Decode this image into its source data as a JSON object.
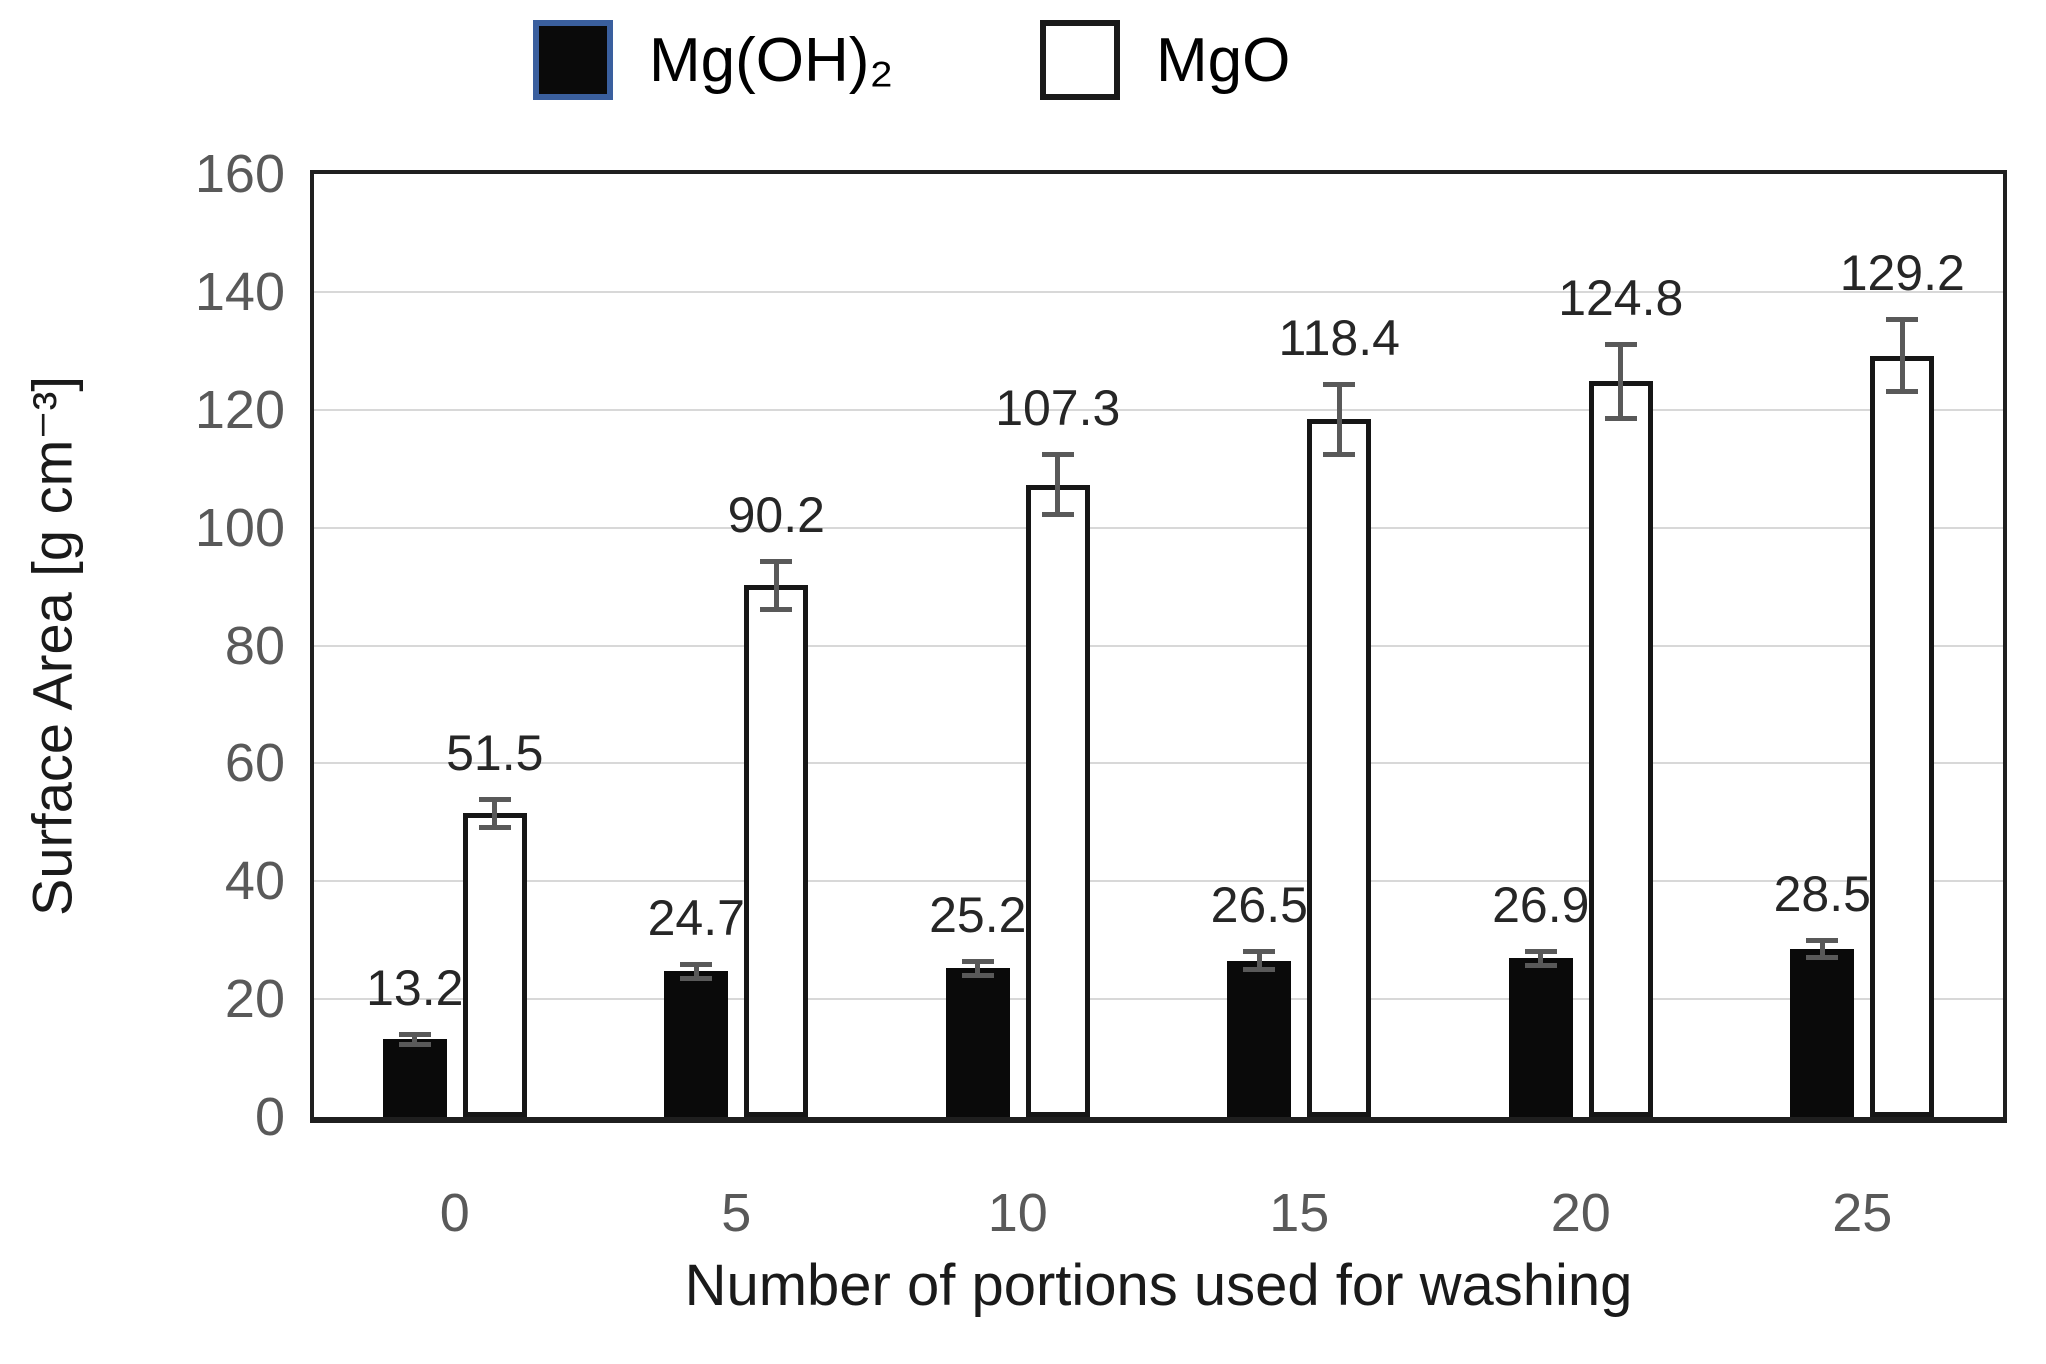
{
  "chart_data": {
    "type": "bar",
    "categories": [
      "0",
      "5",
      "10",
      "15",
      "20",
      "25"
    ],
    "series": [
      {
        "name": "Mg(OH)₂",
        "values": [
          13.2,
          24.7,
          25.2,
          26.5,
          26.9,
          28.5
        ],
        "errors": [
          0.9,
          1.3,
          1.2,
          1.6,
          1.3,
          1.5
        ],
        "fill": "#0a0a0a",
        "border": "#0a0a0a",
        "legend_swatch_border": "#3a5f9e"
      },
      {
        "name": "MgO",
        "values": [
          51.5,
          90.2,
          107.3,
          118.4,
          124.8,
          129.2
        ],
        "errors": [
          2.4,
          4.1,
          5.2,
          6.0,
          6.3,
          6.2
        ],
        "fill": "#ffffff",
        "border": "#161616",
        "legend_swatch_border": "#1a1a1a"
      }
    ],
    "data_labels": true,
    "error_bars": true,
    "xlabel": "Number of portions used for washing",
    "ylabel": "Surface Area [g cm⁻³]",
    "ylim": [
      0,
      160
    ],
    "ytick_step": 20,
    "xticks": [
      "0",
      "5",
      "10",
      "15",
      "20",
      "25"
    ],
    "yticks": [
      "0",
      "20",
      "40",
      "60",
      "80",
      "100",
      "120",
      "140",
      "160"
    ],
    "legend_position": "top",
    "grid": "horizontal"
  },
  "colors": {
    "grid": "#d8d8d8",
    "plot_border": "#1f1f1f",
    "tick_label": "#595959",
    "data_label": "#262626",
    "error_bar": "#595959",
    "axis_title": "#1a1a1a",
    "legend_text": "#000000",
    "background": "#ffffff"
  }
}
